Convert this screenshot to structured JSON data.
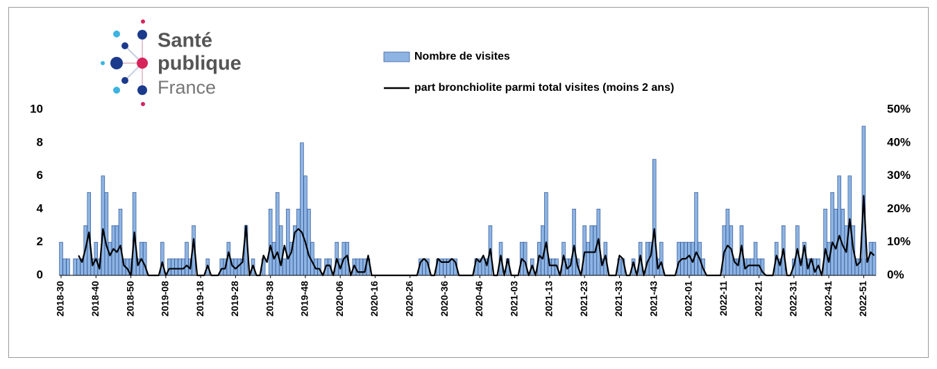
{
  "logo": {
    "line1": "Santé",
    "line2": "publique",
    "line3": "France"
  },
  "chart_data": {
    "type": "bar-line",
    "categories": [
      "2018-30",
      null,
      null,
      null,
      null,
      null,
      null,
      null,
      null,
      null,
      "2018-40",
      null,
      null,
      null,
      null,
      null,
      null,
      null,
      null,
      null,
      "2018-50",
      null,
      null,
      null,
      null,
      null,
      null,
      null,
      null,
      null,
      "2019-08",
      null,
      null,
      null,
      null,
      null,
      null,
      null,
      null,
      null,
      "2019-18",
      null,
      null,
      null,
      null,
      null,
      null,
      null,
      null,
      null,
      "2019-28",
      null,
      null,
      null,
      null,
      null,
      null,
      null,
      null,
      null,
      "2019-38",
      null,
      null,
      null,
      null,
      null,
      null,
      null,
      null,
      null,
      "2019-48",
      null,
      null,
      null,
      null,
      null,
      null,
      null,
      null,
      null,
      "2020-06",
      null,
      null,
      null,
      null,
      null,
      null,
      null,
      null,
      null,
      "2020-16",
      null,
      null,
      null,
      null,
      null,
      null,
      null,
      null,
      null,
      "2020-26",
      null,
      null,
      null,
      null,
      null,
      null,
      null,
      null,
      null,
      "2020-36",
      null,
      null,
      null,
      null,
      null,
      null,
      null,
      null,
      null,
      "2020-46",
      null,
      null,
      null,
      null,
      null,
      null,
      null,
      null,
      null,
      "2021-03",
      null,
      null,
      null,
      null,
      null,
      null,
      null,
      null,
      null,
      "2021-13",
      null,
      null,
      null,
      null,
      null,
      null,
      null,
      null,
      null,
      "2021-23",
      null,
      null,
      null,
      null,
      null,
      null,
      null,
      null,
      null,
      "2021-33",
      null,
      null,
      null,
      null,
      null,
      null,
      null,
      null,
      null,
      "2021-43",
      null,
      null,
      null,
      null,
      null,
      null,
      null,
      null,
      null,
      "2022-01",
      null,
      null,
      null,
      null,
      null,
      null,
      null,
      null,
      null,
      "2022-11",
      null,
      null,
      null,
      null,
      null,
      null,
      null,
      null,
      null,
      "2022-21",
      null,
      null,
      null,
      null,
      null,
      null,
      null,
      null,
      null,
      "2022-31",
      null,
      null,
      null,
      null,
      null,
      null,
      null,
      null,
      null,
      "2022-41",
      null,
      null,
      null,
      null,
      null,
      null,
      null,
      null,
      null,
      "2022-51",
      null,
      null,
      null
    ],
    "series": [
      {
        "name": "Nombre de visites",
        "color": "#8db4e2",
        "values": [
          2,
          1,
          1,
          0,
          1,
          1,
          1,
          3,
          5,
          1,
          2,
          1,
          6,
          5,
          2,
          3,
          3,
          4,
          1,
          1,
          1,
          5,
          1,
          2,
          2,
          0,
          0,
          0,
          0,
          2,
          0,
          1,
          1,
          1,
          1,
          1,
          2,
          1,
          3,
          0,
          0,
          0,
          1,
          0,
          0,
          0,
          1,
          1,
          2,
          1,
          1,
          1,
          1,
          3,
          0,
          1,
          0,
          0,
          1,
          0,
          4,
          2,
          5,
          3,
          1,
          4,
          2,
          3,
          4,
          8,
          6,
          4,
          2,
          1,
          1,
          0,
          1,
          1,
          0,
          2,
          1,
          2,
          2,
          0,
          1,
          1,
          1,
          1,
          1,
          0,
          0,
          0,
          0,
          0,
          0,
          0,
          0,
          0,
          0,
          0,
          0,
          0,
          0,
          1,
          1,
          1,
          0,
          0,
          1,
          1,
          1,
          1,
          1,
          1,
          0,
          0,
          0,
          0,
          0,
          1,
          1,
          1,
          1,
          3,
          0,
          0,
          2,
          0,
          1,
          0,
          0,
          0,
          2,
          2,
          0,
          1,
          0,
          2,
          3,
          5,
          1,
          1,
          1,
          0,
          2,
          1,
          1,
          4,
          1,
          0,
          3,
          2,
          3,
          3,
          4,
          1,
          2,
          0,
          0,
          0,
          1,
          1,
          0,
          0,
          1,
          0,
          2,
          0,
          2,
          2,
          7,
          1,
          2,
          0,
          0,
          0,
          0,
          2,
          2,
          2,
          2,
          2,
          5,
          2,
          1,
          0,
          0,
          0,
          0,
          0,
          3,
          4,
          3,
          1,
          1,
          3,
          1,
          1,
          1,
          2,
          1,
          1,
          0,
          0,
          0,
          2,
          1,
          3,
          0,
          0,
          1,
          3,
          1,
          2,
          1,
          1,
          1,
          1,
          0,
          4,
          2,
          5,
          4,
          6,
          4,
          3,
          6,
          3,
          1,
          1,
          9,
          1,
          2,
          2
        ]
      },
      {
        "name": "part bronchiolite parmi total visites (moins 2 ans)",
        "color": "#000000",
        "axis": "y2",
        "values": [
          null,
          null,
          null,
          null,
          null,
          6,
          4,
          8,
          13,
          3,
          5,
          2,
          14,
          9,
          6,
          8,
          7,
          9,
          3,
          2,
          0,
          13,
          3,
          5,
          3,
          0,
          0,
          0,
          0,
          4,
          0,
          2,
          2,
          2,
          2,
          2,
          3,
          2,
          11,
          0,
          0,
          0,
          3,
          0,
          0,
          0,
          2,
          2,
          7,
          3,
          2,
          3,
          4,
          15,
          0,
          3,
          0,
          0,
          6,
          4,
          9,
          5,
          7,
          3,
          9,
          5,
          7,
          13,
          14,
          13,
          10,
          6,
          4,
          2,
          2,
          0,
          3,
          3,
          0,
          5,
          2,
          5,
          6,
          0,
          3,
          1,
          1,
          1,
          6,
          0,
          0,
          0,
          0,
          0,
          0,
          0,
          0,
          0,
          0,
          0,
          0,
          0,
          0,
          4,
          5,
          4,
          0,
          0,
          5,
          4,
          4,
          4,
          5,
          4,
          0,
          0,
          0,
          0,
          0,
          5,
          4,
          6,
          3,
          8,
          0,
          0,
          6,
          0,
          5,
          0,
          0,
          0,
          5,
          4,
          0,
          3,
          0,
          6,
          5,
          10,
          3,
          3,
          3,
          0,
          6,
          2,
          3,
          9,
          3,
          0,
          7,
          7,
          7,
          7,
          11,
          3,
          6,
          0,
          0,
          0,
          6,
          5,
          0,
          0,
          4,
          0,
          6,
          0,
          4,
          6,
          14,
          2,
          4,
          0,
          0,
          0,
          0,
          4,
          5,
          5,
          6,
          4,
          7,
          5,
          2,
          0,
          0,
          0,
          0,
          0,
          7,
          9,
          8,
          4,
          3,
          9,
          2,
          3,
          3,
          3,
          3,
          1,
          0,
          0,
          0,
          6,
          3,
          8,
          0,
          0,
          3,
          8,
          3,
          9,
          2,
          5,
          1,
          3,
          0,
          8,
          4,
          10,
          8,
          12,
          9,
          7,
          17,
          8,
          3,
          4,
          24,
          4,
          7,
          6
        ]
      }
    ],
    "ylim": [
      0,
      10
    ],
    "yticks": [
      0,
      2,
      4,
      6,
      8,
      10
    ],
    "y2lim": [
      0,
      50
    ],
    "y2ticks": [
      {
        "value": 0,
        "label": "0%"
      },
      {
        "value": 10,
        "label": "10%"
      },
      {
        "value": 20,
        "label": "20%"
      },
      {
        "value": 30,
        "label": "30%"
      },
      {
        "value": 40,
        "label": "40%"
      },
      {
        "value": 50,
        "label": "50%"
      }
    ],
    "grid": false,
    "legend": "top"
  }
}
